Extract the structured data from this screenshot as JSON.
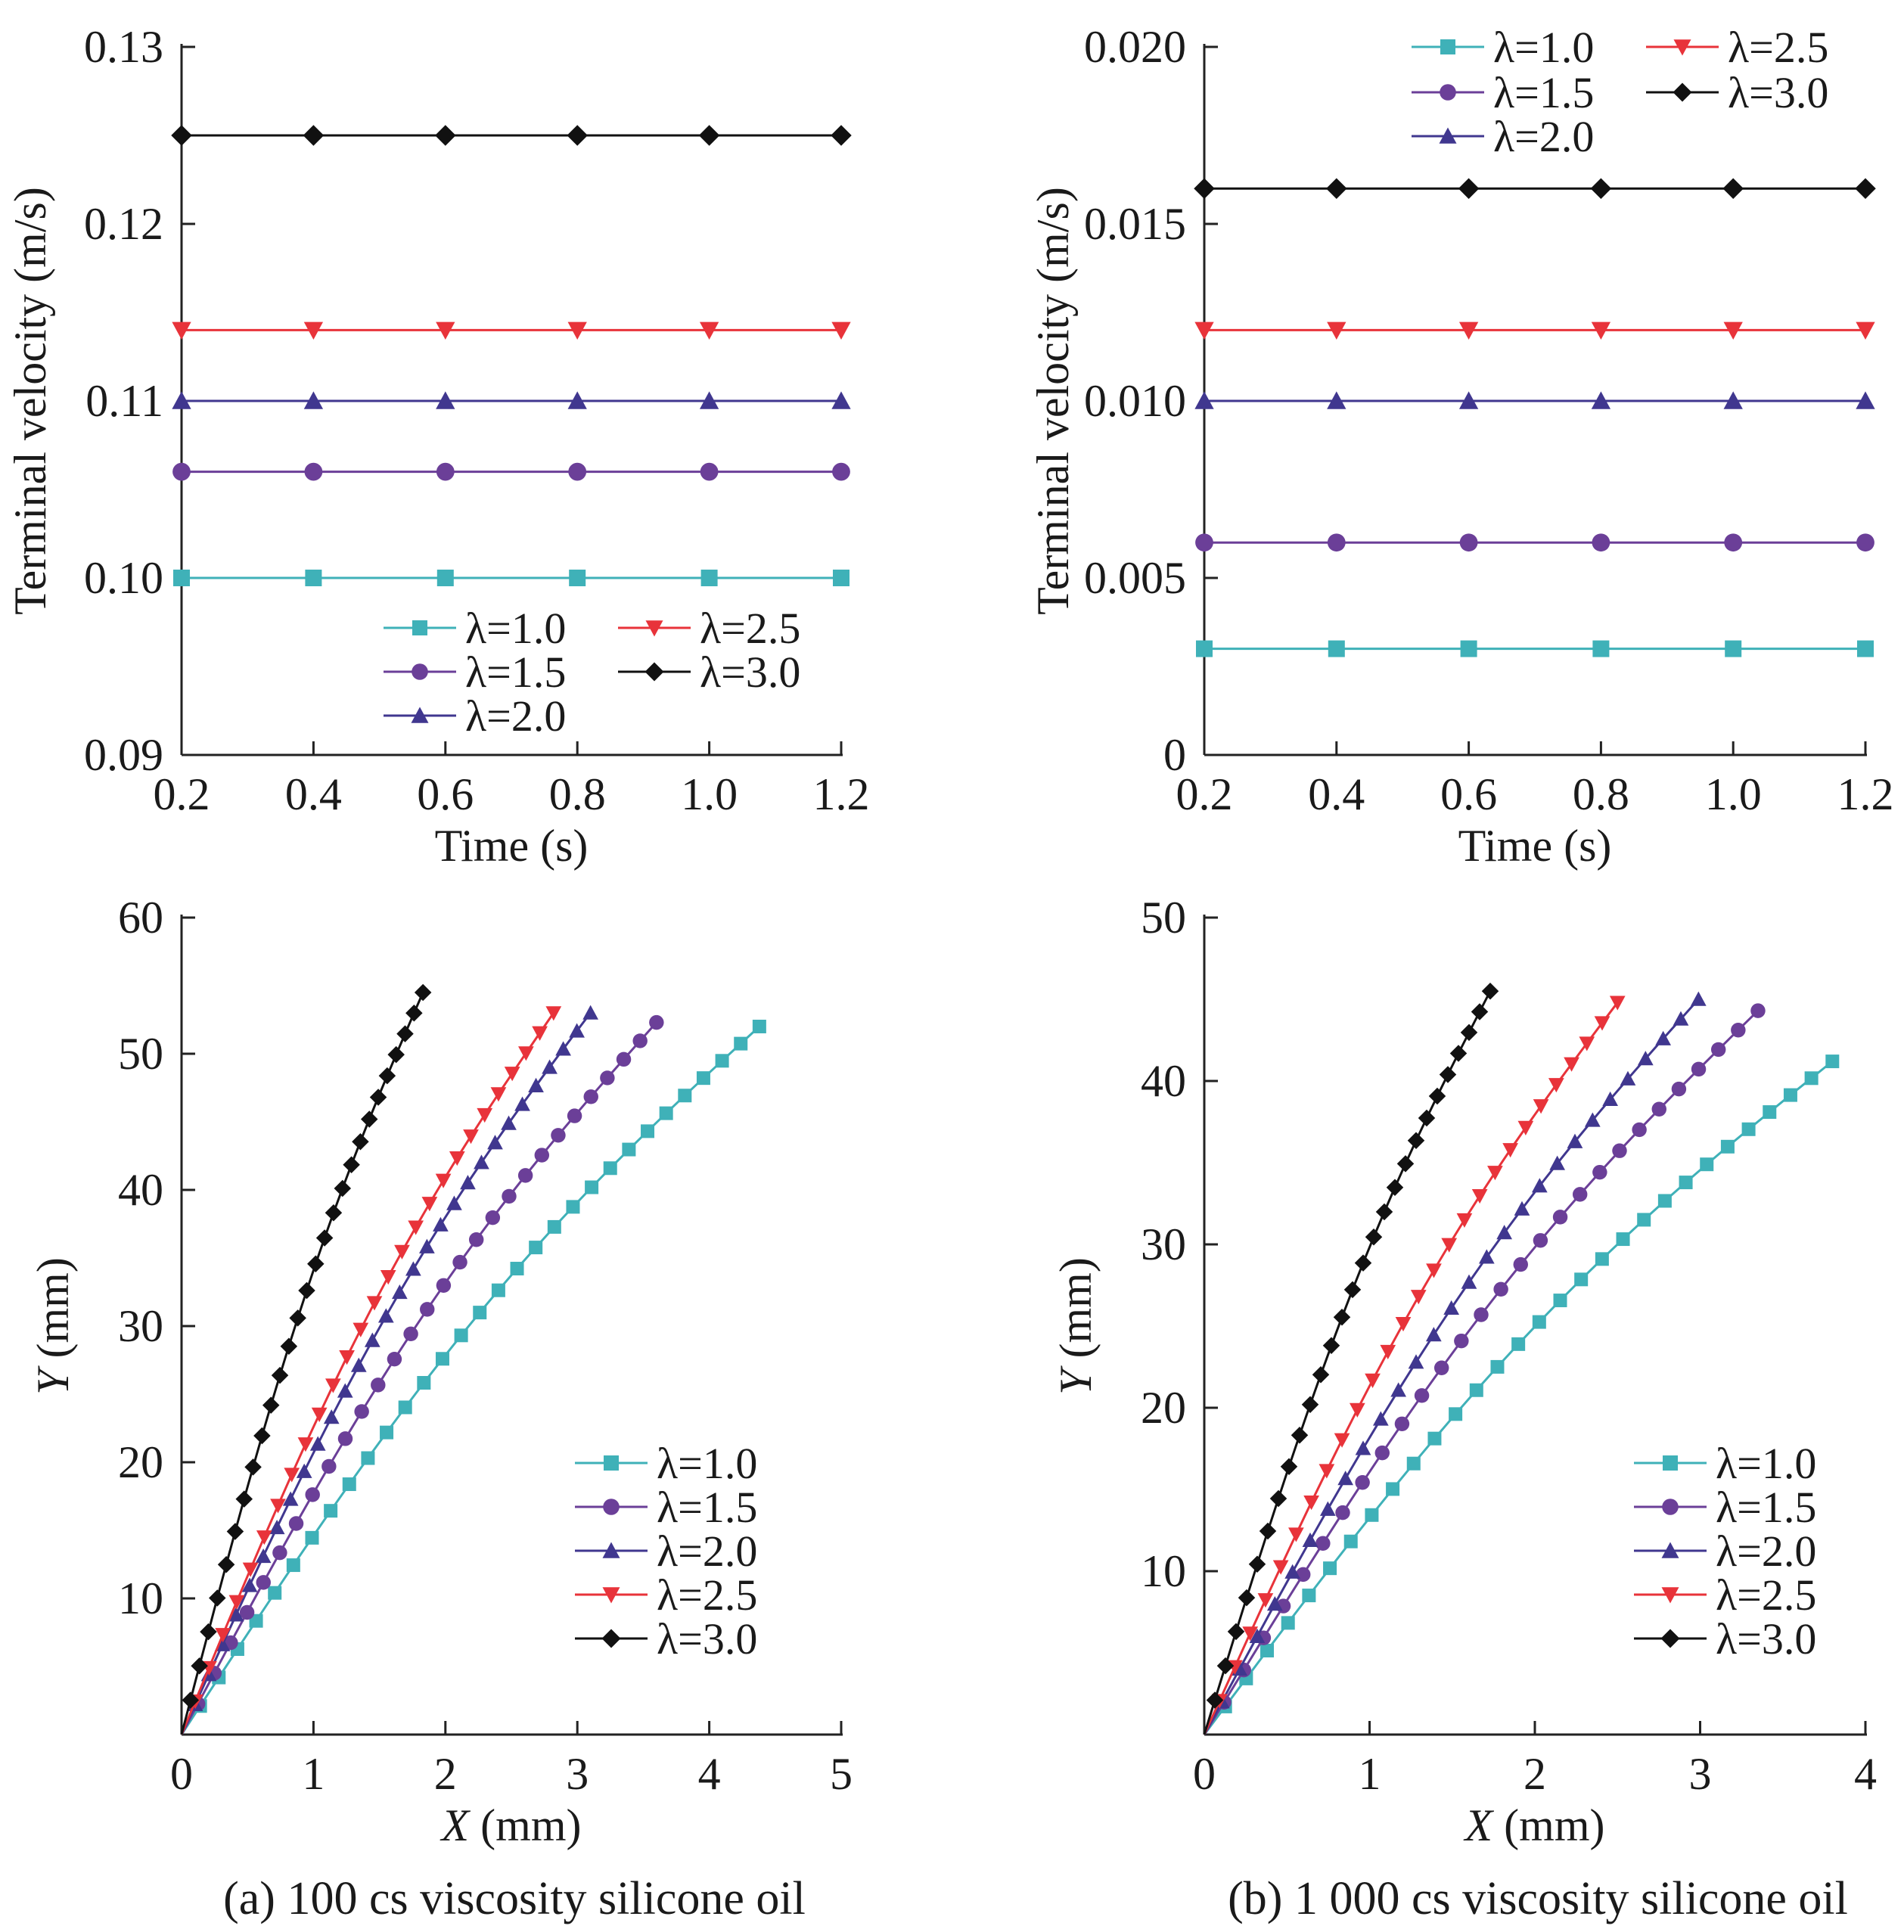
{
  "figure": {
    "caption_a": "(a) 100 cs viscosity silicone oil",
    "caption_b": "(b) 1 000 cs viscosity silicone oil"
  },
  "series_styles": [
    {
      "name": "λ=1.0",
      "color": "#3fb1b8",
      "marker": "square"
    },
    {
      "name": "λ=1.5",
      "color": "#6b3f98",
      "marker": "circle"
    },
    {
      "name": "λ=2.0",
      "color": "#40378f",
      "marker": "triangle-up"
    },
    {
      "name": "λ=2.5",
      "color": "#e8333a",
      "marker": "triangle-down"
    },
    {
      "name": "λ=3.0",
      "color": "#111111",
      "marker": "diamond"
    }
  ],
  "chart_data": [
    {
      "id": "a-top",
      "type": "line",
      "xlabel": "Time (s)",
      "ylabel": "Terminal velocity (m/s)",
      "xlim": [
        0.2,
        1.2
      ],
      "ylim": [
        0.09,
        0.13
      ],
      "xticks": [
        0.2,
        0.4,
        0.6,
        0.8,
        1.0,
        1.2
      ],
      "xtick_labels": [
        "0.2",
        "0.4",
        "0.6",
        "0.8",
        "1.0",
        "1.2"
      ],
      "yticks": [
        0.09,
        0.1,
        0.11,
        0.12,
        0.13
      ],
      "ytick_labels": [
        "0.09",
        "0.10",
        "0.11",
        "0.12",
        "0.13"
      ],
      "legend": {
        "placement": "bottom-center",
        "layout": "two-column"
      },
      "x": [
        0.2,
        0.4,
        0.6,
        0.8,
        1.0,
        1.2
      ],
      "series": [
        {
          "name": "λ=1.0",
          "values": [
            0.1,
            0.1,
            0.1,
            0.1,
            0.1,
            0.1
          ]
        },
        {
          "name": "λ=1.5",
          "values": [
            0.106,
            0.106,
            0.106,
            0.106,
            0.106,
            0.106
          ]
        },
        {
          "name": "λ=2.0",
          "values": [
            0.11,
            0.11,
            0.11,
            0.11,
            0.11,
            0.11
          ]
        },
        {
          "name": "λ=2.5",
          "values": [
            0.114,
            0.114,
            0.114,
            0.114,
            0.114,
            0.114
          ]
        },
        {
          "name": "λ=3.0",
          "values": [
            0.125,
            0.125,
            0.125,
            0.125,
            0.125,
            0.125
          ]
        }
      ]
    },
    {
      "id": "b-top",
      "type": "line",
      "xlabel": "Time (s)",
      "ylabel": "Terminal velocity (m/s)",
      "xlim": [
        0.2,
        1.2
      ],
      "ylim": [
        0,
        0.02
      ],
      "xticks": [
        0.2,
        0.4,
        0.6,
        0.8,
        1.0,
        1.2
      ],
      "xtick_labels": [
        "0.2",
        "0.4",
        "0.6",
        "0.8",
        "1.0",
        "1.2"
      ],
      "yticks": [
        0,
        0.005,
        0.01,
        0.015,
        0.02
      ],
      "ytick_labels": [
        "0",
        "0.005",
        "0.010",
        "0.015",
        "0.020"
      ],
      "legend": {
        "placement": "top-center",
        "layout": "two-column"
      },
      "x": [
        0.2,
        0.4,
        0.6,
        0.8,
        1.0,
        1.2
      ],
      "series": [
        {
          "name": "λ=1.0",
          "values": [
            0.003,
            0.003,
            0.003,
            0.003,
            0.003,
            0.003
          ]
        },
        {
          "name": "λ=1.5",
          "values": [
            0.006,
            0.006,
            0.006,
            0.006,
            0.006,
            0.006
          ]
        },
        {
          "name": "λ=2.0",
          "values": [
            0.01,
            0.01,
            0.01,
            0.01,
            0.01,
            0.01
          ]
        },
        {
          "name": "λ=2.5",
          "values": [
            0.012,
            0.012,
            0.012,
            0.012,
            0.012,
            0.012
          ]
        },
        {
          "name": "λ=3.0",
          "values": [
            0.016,
            0.016,
            0.016,
            0.016,
            0.016,
            0.016
          ]
        }
      ]
    },
    {
      "id": "a-bottom",
      "type": "line",
      "xlabel_var": "X",
      "xlabel_unit": " (mm)",
      "ylabel_var": "Y",
      "ylabel_unit": " (mm)",
      "xlim": [
        0,
        5
      ],
      "ylim": [
        0,
        60
      ],
      "xticks": [
        0,
        1,
        2,
        3,
        4,
        5
      ],
      "xtick_labels": [
        "0",
        "1",
        "2",
        "3",
        "4",
        "5"
      ],
      "yticks": [
        10,
        20,
        30,
        40,
        50,
        60
      ],
      "ytick_labels": [
        "10",
        "20",
        "30",
        "40",
        "50",
        "60"
      ],
      "legend": {
        "placement": "bottom-right",
        "layout": "one-column"
      },
      "series": [
        {
          "name": "λ=1.0",
          "x_end": 4.38,
          "y_end": 52.0,
          "n_points": 32
        },
        {
          "name": "λ=1.5",
          "x_end": 3.6,
          "y_end": 52.3,
          "n_points": 30
        },
        {
          "name": "λ=2.0",
          "x_end": 3.1,
          "y_end": 53.0,
          "n_points": 31
        },
        {
          "name": "λ=2.5",
          "x_end": 2.82,
          "y_end": 53.0,
          "n_points": 28
        },
        {
          "name": "λ=3.0",
          "x_end": 1.83,
          "y_end": 54.5,
          "n_points": 28
        }
      ]
    },
    {
      "id": "b-bottom",
      "type": "line",
      "xlabel_var": "X",
      "xlabel_unit": " (mm)",
      "ylabel_var": "Y",
      "ylabel_unit": " (mm)",
      "xlim": [
        0,
        4
      ],
      "ylim": [
        0,
        50
      ],
      "xticks": [
        0,
        1,
        2,
        3,
        4
      ],
      "xtick_labels": [
        "0",
        "1",
        "2",
        "3",
        "4"
      ],
      "yticks": [
        10,
        20,
        30,
        40,
        50
      ],
      "ytick_labels": [
        "10",
        "20",
        "30",
        "40",
        "50"
      ],
      "legend": {
        "placement": "bottom-right",
        "layout": "one-column"
      },
      "series": [
        {
          "name": "λ=1.0",
          "x_end": 3.8,
          "y_end": 41.2,
          "n_points": 31
        },
        {
          "name": "λ=1.5",
          "x_end": 3.35,
          "y_end": 44.3,
          "n_points": 29
        },
        {
          "name": "λ=2.0",
          "x_end": 2.99,
          "y_end": 45.0,
          "n_points": 29
        },
        {
          "name": "λ=2.5",
          "x_end": 2.5,
          "y_end": 44.8,
          "n_points": 28
        },
        {
          "name": "λ=3.0",
          "x_end": 1.73,
          "y_end": 45.5,
          "n_points": 28
        }
      ]
    }
  ]
}
